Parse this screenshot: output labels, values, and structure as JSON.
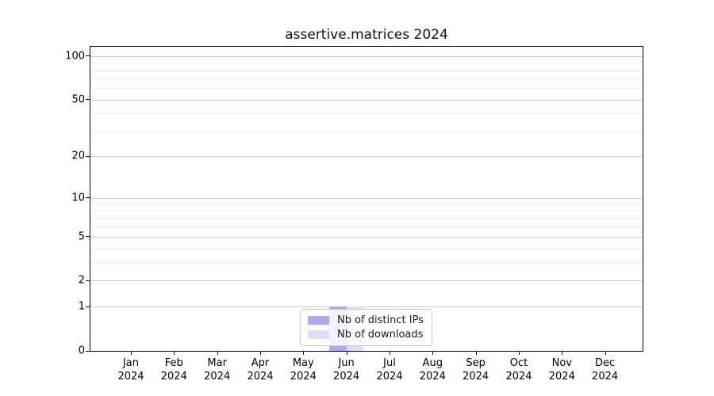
{
  "chart_data": {
    "type": "bar",
    "title": "assertive.matrices 2024",
    "xlabel": "",
    "ylabel": "",
    "categories": [
      {
        "month": "Jan",
        "year": "2024"
      },
      {
        "month": "Feb",
        "year": "2024"
      },
      {
        "month": "Mar",
        "year": "2024"
      },
      {
        "month": "Apr",
        "year": "2024"
      },
      {
        "month": "May",
        "year": "2024"
      },
      {
        "month": "Jun",
        "year": "2024"
      },
      {
        "month": "Jul",
        "year": "2024"
      },
      {
        "month": "Aug",
        "year": "2024"
      },
      {
        "month": "Sep",
        "year": "2024"
      },
      {
        "month": "Oct",
        "year": "2024"
      },
      {
        "month": "Nov",
        "year": "2024"
      },
      {
        "month": "Dec",
        "year": "2024"
      }
    ],
    "series": [
      {
        "name": "Nb of distinct IPs",
        "color": "#aaaaee",
        "values": [
          0,
          0,
          0,
          0,
          0,
          1,
          0,
          0,
          0,
          0,
          0,
          0
        ]
      },
      {
        "name": "Nb of downloads",
        "color": "#dcddf7",
        "values": [
          0,
          0,
          0,
          0,
          0,
          1,
          0,
          0,
          0,
          0,
          0,
          0
        ]
      }
    ],
    "yscale": "log1p",
    "ylim": [
      0,
      115
    ],
    "yticks": [
      {
        "value": 0,
        "label": "0"
      },
      {
        "value": 1,
        "label": "1"
      },
      {
        "value": 2,
        "label": "2"
      },
      {
        "value": 5,
        "label": "5"
      },
      {
        "value": 10,
        "label": "10"
      },
      {
        "value": 20,
        "label": "20"
      },
      {
        "value": 50,
        "label": "50"
      },
      {
        "value": 100,
        "label": "100"
      }
    ],
    "yticks_minor": [
      3,
      4,
      6,
      7,
      8,
      9,
      30,
      40,
      60,
      70,
      80,
      90
    ],
    "grid": "horizontal, major and minor",
    "legend_position": "lower center"
  },
  "legend": {
    "items": [
      {
        "label": "Nb of distinct IPs",
        "color": "#aaaaee"
      },
      {
        "label": "Nb of downloads",
        "color": "#dcddf7"
      }
    ]
  },
  "colors": {
    "background": "#ffffff",
    "spine": "#000000",
    "grid_major": "#cdcdcd",
    "grid_minor": "#ececec",
    "text": "#000000"
  }
}
